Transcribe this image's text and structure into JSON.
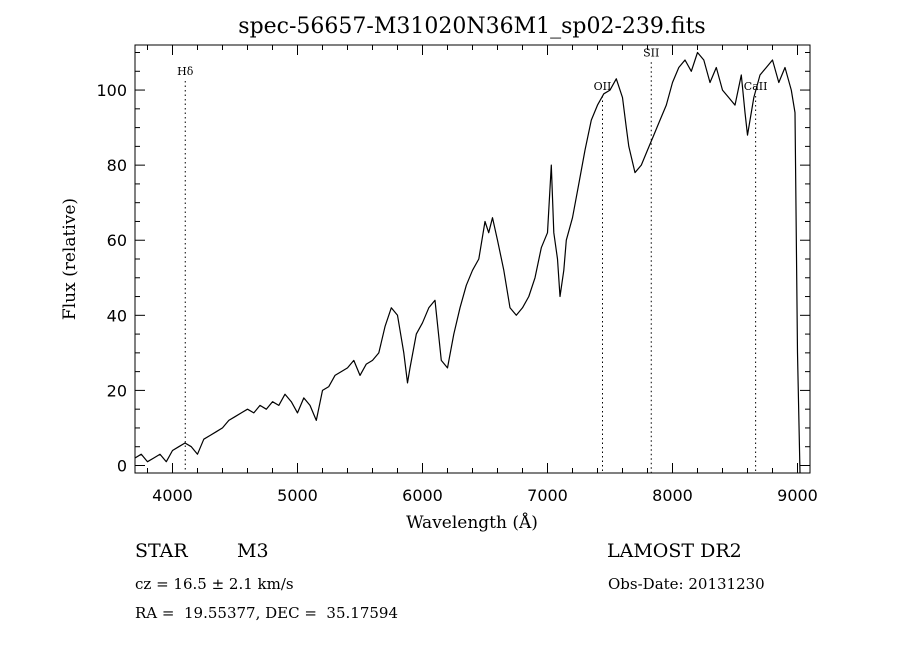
{
  "chart_data": {
    "type": "line",
    "title": "spec-56657-M31020N36M1_sp02-239.fits",
    "xlabel": "Wavelength (Å)",
    "ylabel": "Flux (relative)",
    "xlim": [
      3700,
      9100
    ],
    "ylim": [
      -2,
      112
    ],
    "xticks": [
      4000,
      5000,
      6000,
      7000,
      8000,
      9000
    ],
    "yticks": [
      0,
      20,
      40,
      60,
      80,
      100
    ],
    "grid": false,
    "line_color": "#000000",
    "lines": [
      {
        "label": "Hδ",
        "x": 4102,
        "label_y": 104
      },
      {
        "label": "OII",
        "x": 7440,
        "label_y": 100
      },
      {
        "label": "SII",
        "x": 7830,
        "label_y": 109
      },
      {
        "label": "CaII",
        "x": 8665,
        "label_y": 100
      }
    ],
    "series": [
      {
        "x": [
          3700,
          3750,
          3800,
          3850,
          3900,
          3950,
          4000,
          4050,
          4100,
          4150,
          4200,
          4250,
          4300,
          4350,
          4400,
          4450,
          4500,
          4550,
          4600,
          4650,
          4700,
          4750,
          4800,
          4850,
          4900,
          4950,
          5000,
          5050,
          5100,
          5150,
          5200,
          5250,
          5300,
          5350,
          5400,
          5450,
          5500,
          5550,
          5600,
          5650,
          5700,
          5750,
          5800,
          5850,
          5880,
          5900,
          5950,
          6000,
          6050,
          6100,
          6150,
          6200,
          6250,
          6300,
          6350,
          6400,
          6450,
          6500,
          6530,
          6560,
          6600,
          6650,
          6700,
          6750,
          6800,
          6850,
          6900,
          6950,
          7000,
          7030,
          7050,
          7080,
          7100,
          7130,
          7150,
          7200,
          7250,
          7300,
          7350,
          7400,
          7450,
          7500,
          7550,
          7600,
          7630,
          7650,
          7700,
          7750,
          7800,
          7850,
          7900,
          7950,
          8000,
          8050,
          8100,
          8150,
          8200,
          8250,
          8300,
          8350,
          8400,
          8450,
          8500,
          8550,
          8580,
          8600,
          8650,
          8700,
          8750,
          8800,
          8850,
          8900,
          8950,
          8980,
          9000,
          9020
        ],
        "y": [
          2,
          3,
          1,
          2,
          3,
          1,
          4,
          5,
          6,
          5,
          3,
          7,
          8,
          9,
          10,
          12,
          13,
          14,
          15,
          14,
          16,
          15,
          17,
          16,
          19,
          17,
          14,
          18,
          16,
          12,
          20,
          21,
          24,
          25,
          26,
          28,
          24,
          27,
          28,
          30,
          37,
          42,
          40,
          30,
          22,
          26,
          35,
          38,
          42,
          44,
          28,
          26,
          35,
          42,
          48,
          52,
          55,
          65,
          62,
          66,
          60,
          52,
          42,
          40,
          42,
          45,
          50,
          58,
          62,
          80,
          62,
          55,
          45,
          52,
          60,
          66,
          75,
          84,
          92,
          96,
          99,
          100,
          103,
          98,
          90,
          85,
          78,
          80,
          84,
          88,
          92,
          96,
          102,
          106,
          108,
          105,
          110,
          108,
          102,
          106,
          100,
          98,
          96,
          104,
          94,
          88,
          98,
          104,
          106,
          108,
          102,
          106,
          100,
          94,
          30,
          -2
        ]
      }
    ],
    "annotations": {
      "object_class": "STAR",
      "subclass": "M3",
      "survey": "LAMOST DR2",
      "cz": "cz = 16.5 ± 2.1 km/s",
      "obs_date": "Obs-Date: 20131230",
      "radec": "RA =  19.55377, DEC =  35.17594"
    }
  }
}
